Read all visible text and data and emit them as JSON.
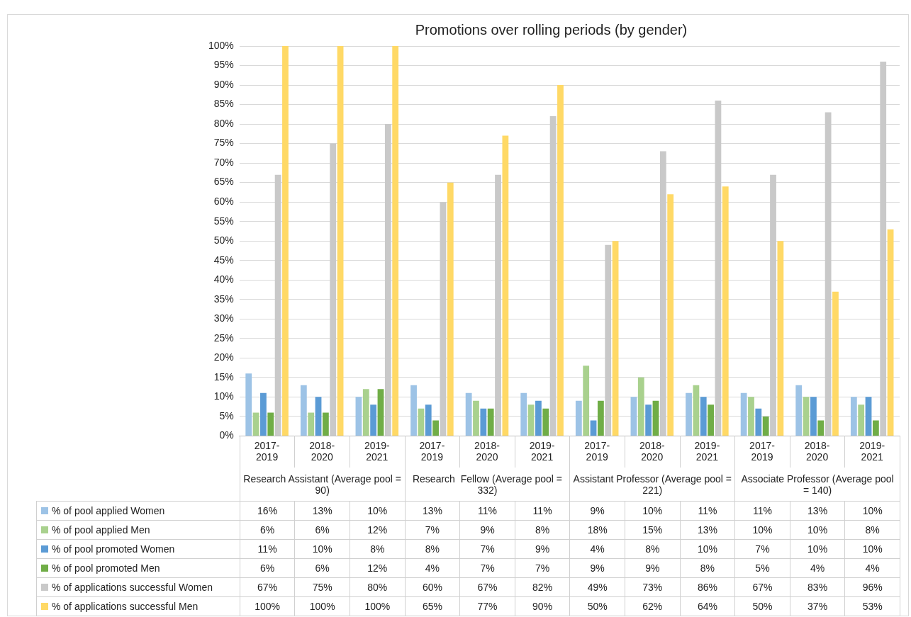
{
  "chart_data": {
    "type": "bar",
    "title": "Promotions over rolling periods (by gender)",
    "categories": [
      "2017-2019",
      "2018-2020",
      "2019-2021",
      "2017-2019",
      "2018-2020",
      "2019-2021",
      "2017-2019",
      "2018-2020",
      "2019-2021",
      "2017-2019",
      "2018-2020",
      "2019-2021"
    ],
    "annotations": [
      "Research Assistant (Average pool = 90)",
      "Research  Fellow (Average pool = 332)",
      "Assistant Professor (Average pool = 221)",
      "Associate Professor (Average pool = 140)"
    ],
    "series": [
      {
        "name": "% of pool applied Women",
        "color": "#9dc3e6",
        "values": [
          16,
          13,
          10,
          13,
          11,
          11,
          9,
          10,
          11,
          11,
          13,
          10
        ],
        "value_labels": [
          "16%",
          "13%",
          "10%",
          "13%",
          "11%",
          "11%",
          "9%",
          "10%",
          "11%",
          "11%",
          "13%",
          "10%"
        ]
      },
      {
        "name": "% of pool applied Men",
        "color": "#a9d18e",
        "values": [
          6,
          6,
          12,
          7,
          9,
          8,
          18,
          15,
          13,
          10,
          10,
          8
        ],
        "value_labels": [
          "6%",
          "6%",
          "12%",
          "7%",
          "9%",
          "8%",
          "18%",
          "15%",
          "13%",
          "10%",
          "10%",
          "8%"
        ]
      },
      {
        "name": "% of pool promoted Women",
        "color": "#5b9bd5",
        "values": [
          11,
          10,
          8,
          8,
          7,
          9,
          4,
          8,
          10,
          7,
          10,
          10
        ],
        "value_labels": [
          "11%",
          "10%",
          "8%",
          "8%",
          "7%",
          "9%",
          "4%",
          "8%",
          "10%",
          "7%",
          "10%",
          "10%"
        ]
      },
      {
        "name": "% of pool promoted Men",
        "color": "#70ad47",
        "values": [
          6,
          6,
          12,
          4,
          7,
          7,
          9,
          9,
          8,
          5,
          4,
          4
        ],
        "value_labels": [
          "6%",
          "6%",
          "12%",
          "4%",
          "7%",
          "7%",
          "9%",
          "9%",
          "8%",
          "5%",
          "4%",
          "4%"
        ]
      },
      {
        "name": "% of applications successful Women",
        "color": "#c9c9c9",
        "values": [
          67,
          75,
          80,
          60,
          67,
          82,
          49,
          73,
          86,
          67,
          83,
          96
        ],
        "value_labels": [
          "67%",
          "75%",
          "80%",
          "60%",
          "67%",
          "82%",
          "49%",
          "73%",
          "86%",
          "67%",
          "83%",
          "96%"
        ]
      },
      {
        "name": "% of applications successful Men",
        "color": "#ffd966",
        "values": [
          100,
          100,
          100,
          65,
          77,
          90,
          50,
          62,
          64,
          50,
          37,
          53
        ],
        "value_labels": [
          "100%",
          "100%",
          "100%",
          "65%",
          "77%",
          "90%",
          "50%",
          "62%",
          "64%",
          "50%",
          "37%",
          "53%"
        ]
      }
    ],
    "ylim": [
      0,
      100
    ],
    "yticks": [
      {
        "value": 0,
        "label": "0%"
      },
      {
        "value": 5,
        "label": "5%"
      },
      {
        "value": 10,
        "label": "10%"
      },
      {
        "value": 15,
        "label": "15%"
      },
      {
        "value": 20,
        "label": "20%"
      },
      {
        "value": 25,
        "label": "25%"
      },
      {
        "value": 30,
        "label": "30%"
      },
      {
        "value": 35,
        "label": "35%"
      },
      {
        "value": 40,
        "label": "40%"
      },
      {
        "value": 45,
        "label": "45%"
      },
      {
        "value": 50,
        "label": "50%"
      },
      {
        "value": 55,
        "label": "55%"
      },
      {
        "value": 60,
        "label": "60%"
      },
      {
        "value": 65,
        "label": "65%"
      },
      {
        "value": 70,
        "label": "70%"
      },
      {
        "value": 75,
        "label": "75%"
      },
      {
        "value": 80,
        "label": "80%"
      },
      {
        "value": 85,
        "label": "85%"
      },
      {
        "value": 90,
        "label": "90%"
      },
      {
        "value": 95,
        "label": "95%"
      },
      {
        "value": 100,
        "label": "100%"
      }
    ],
    "grid": "y",
    "legend": "bottom"
  }
}
